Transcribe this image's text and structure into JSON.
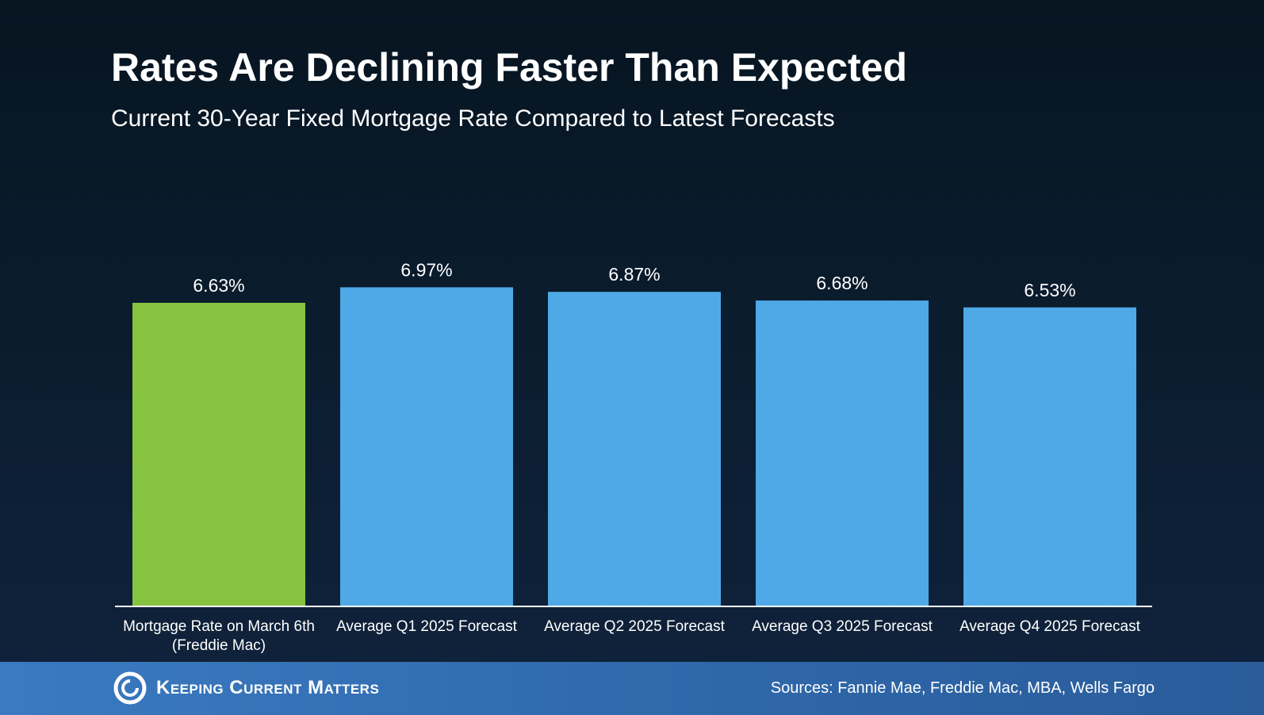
{
  "colors": {
    "current_bar": "#86c440",
    "forecast_bar": "#4ea9e6",
    "text": "#ffffff",
    "baseline": "#ffffff"
  },
  "chart_data": {
    "type": "bar",
    "title": "Rates Are Declining Faster Than Expected",
    "subtitle": "Current 30-Year Fixed Mortgage Rate Compared to Latest Forecasts",
    "categories": [
      [
        "Mortgage Rate on March 6th",
        "(Freddie Mac)"
      ],
      [
        "Average Q1 2025 Forecast"
      ],
      [
        "Average Q2 2025 Forecast"
      ],
      [
        "Average Q3 2025 Forecast"
      ],
      [
        "Average Q4 2025 Forecast"
      ]
    ],
    "values": [
      6.63,
      6.97,
      6.87,
      6.68,
      6.53
    ],
    "value_labels": [
      "6.63%",
      "6.97%",
      "6.87%",
      "6.68%",
      "6.53%"
    ],
    "bar_colors": [
      "#86c440",
      "#4ea9e6",
      "#4ea9e6",
      "#4ea9e6",
      "#4ea9e6"
    ],
    "grid": false,
    "legend": "none"
  },
  "footer": {
    "brand_name": "Keeping Current Matters",
    "brand_icon": "kcm-logo-icon",
    "sources": "Sources: Fannie Mae, Freddie Mac, MBA, Wells Fargo"
  }
}
